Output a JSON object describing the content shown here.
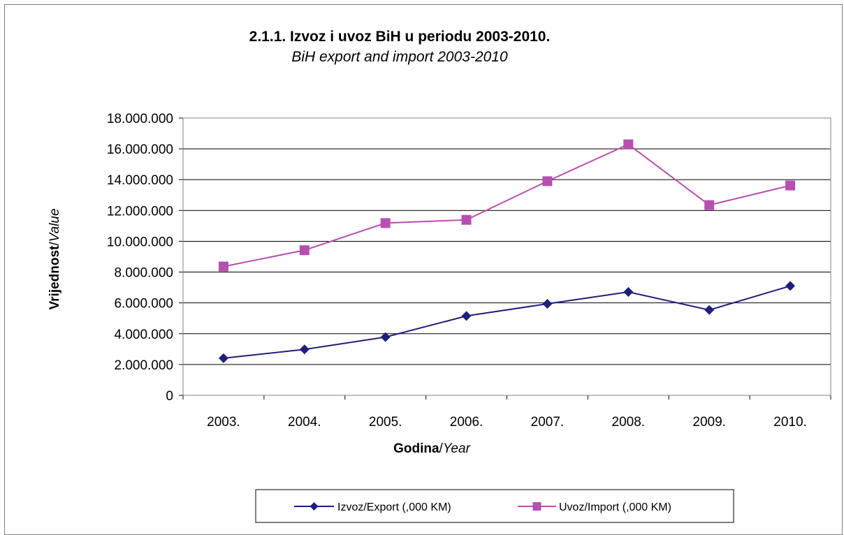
{
  "chart_data": {
    "type": "line",
    "title": "2.1.1. Izvoz i uvoz BiH u periodu 2003-2010.",
    "subtitle": "BiH export and import 2003-2010",
    "xlabel": {
      "main": "Godina",
      "sep": "/",
      "alt": "Year"
    },
    "ylabel": {
      "main": "Vrijednost",
      "sep": "/",
      "alt": "Value"
    },
    "categories": [
      "2003.",
      "2004.",
      "2005.",
      "2006.",
      "2007.",
      "2008.",
      "2009.",
      "2010."
    ],
    "ylim": [
      0,
      18000000
    ],
    "yticks": [
      0,
      2000000,
      4000000,
      6000000,
      8000000,
      10000000,
      12000000,
      14000000,
      16000000,
      18000000
    ],
    "ytick_labels": [
      "0",
      "2.000.000",
      "4.000.000",
      "6.000.000",
      "8.000.000",
      "10.000.000",
      "12.000.000",
      "14.000.000",
      "16.000.000",
      "18.000.000"
    ],
    "grid": true,
    "legend_position": "bottom",
    "series": [
      {
        "name": "Izvoz/Export (,000 KM)",
        "marker": "diamond",
        "color": "#1f1f7a",
        "values": [
          2410000,
          2980000,
          3780000,
          5150000,
          5940000,
          6710000,
          5540000,
          7100000
        ]
      },
      {
        "name": "Uvoz/Import (,000 KM)",
        "marker": "square",
        "color": "#b64fb0",
        "values": [
          8360000,
          9420000,
          11180000,
          11390000,
          13900000,
          16290000,
          12350000,
          13620000
        ]
      }
    ]
  }
}
